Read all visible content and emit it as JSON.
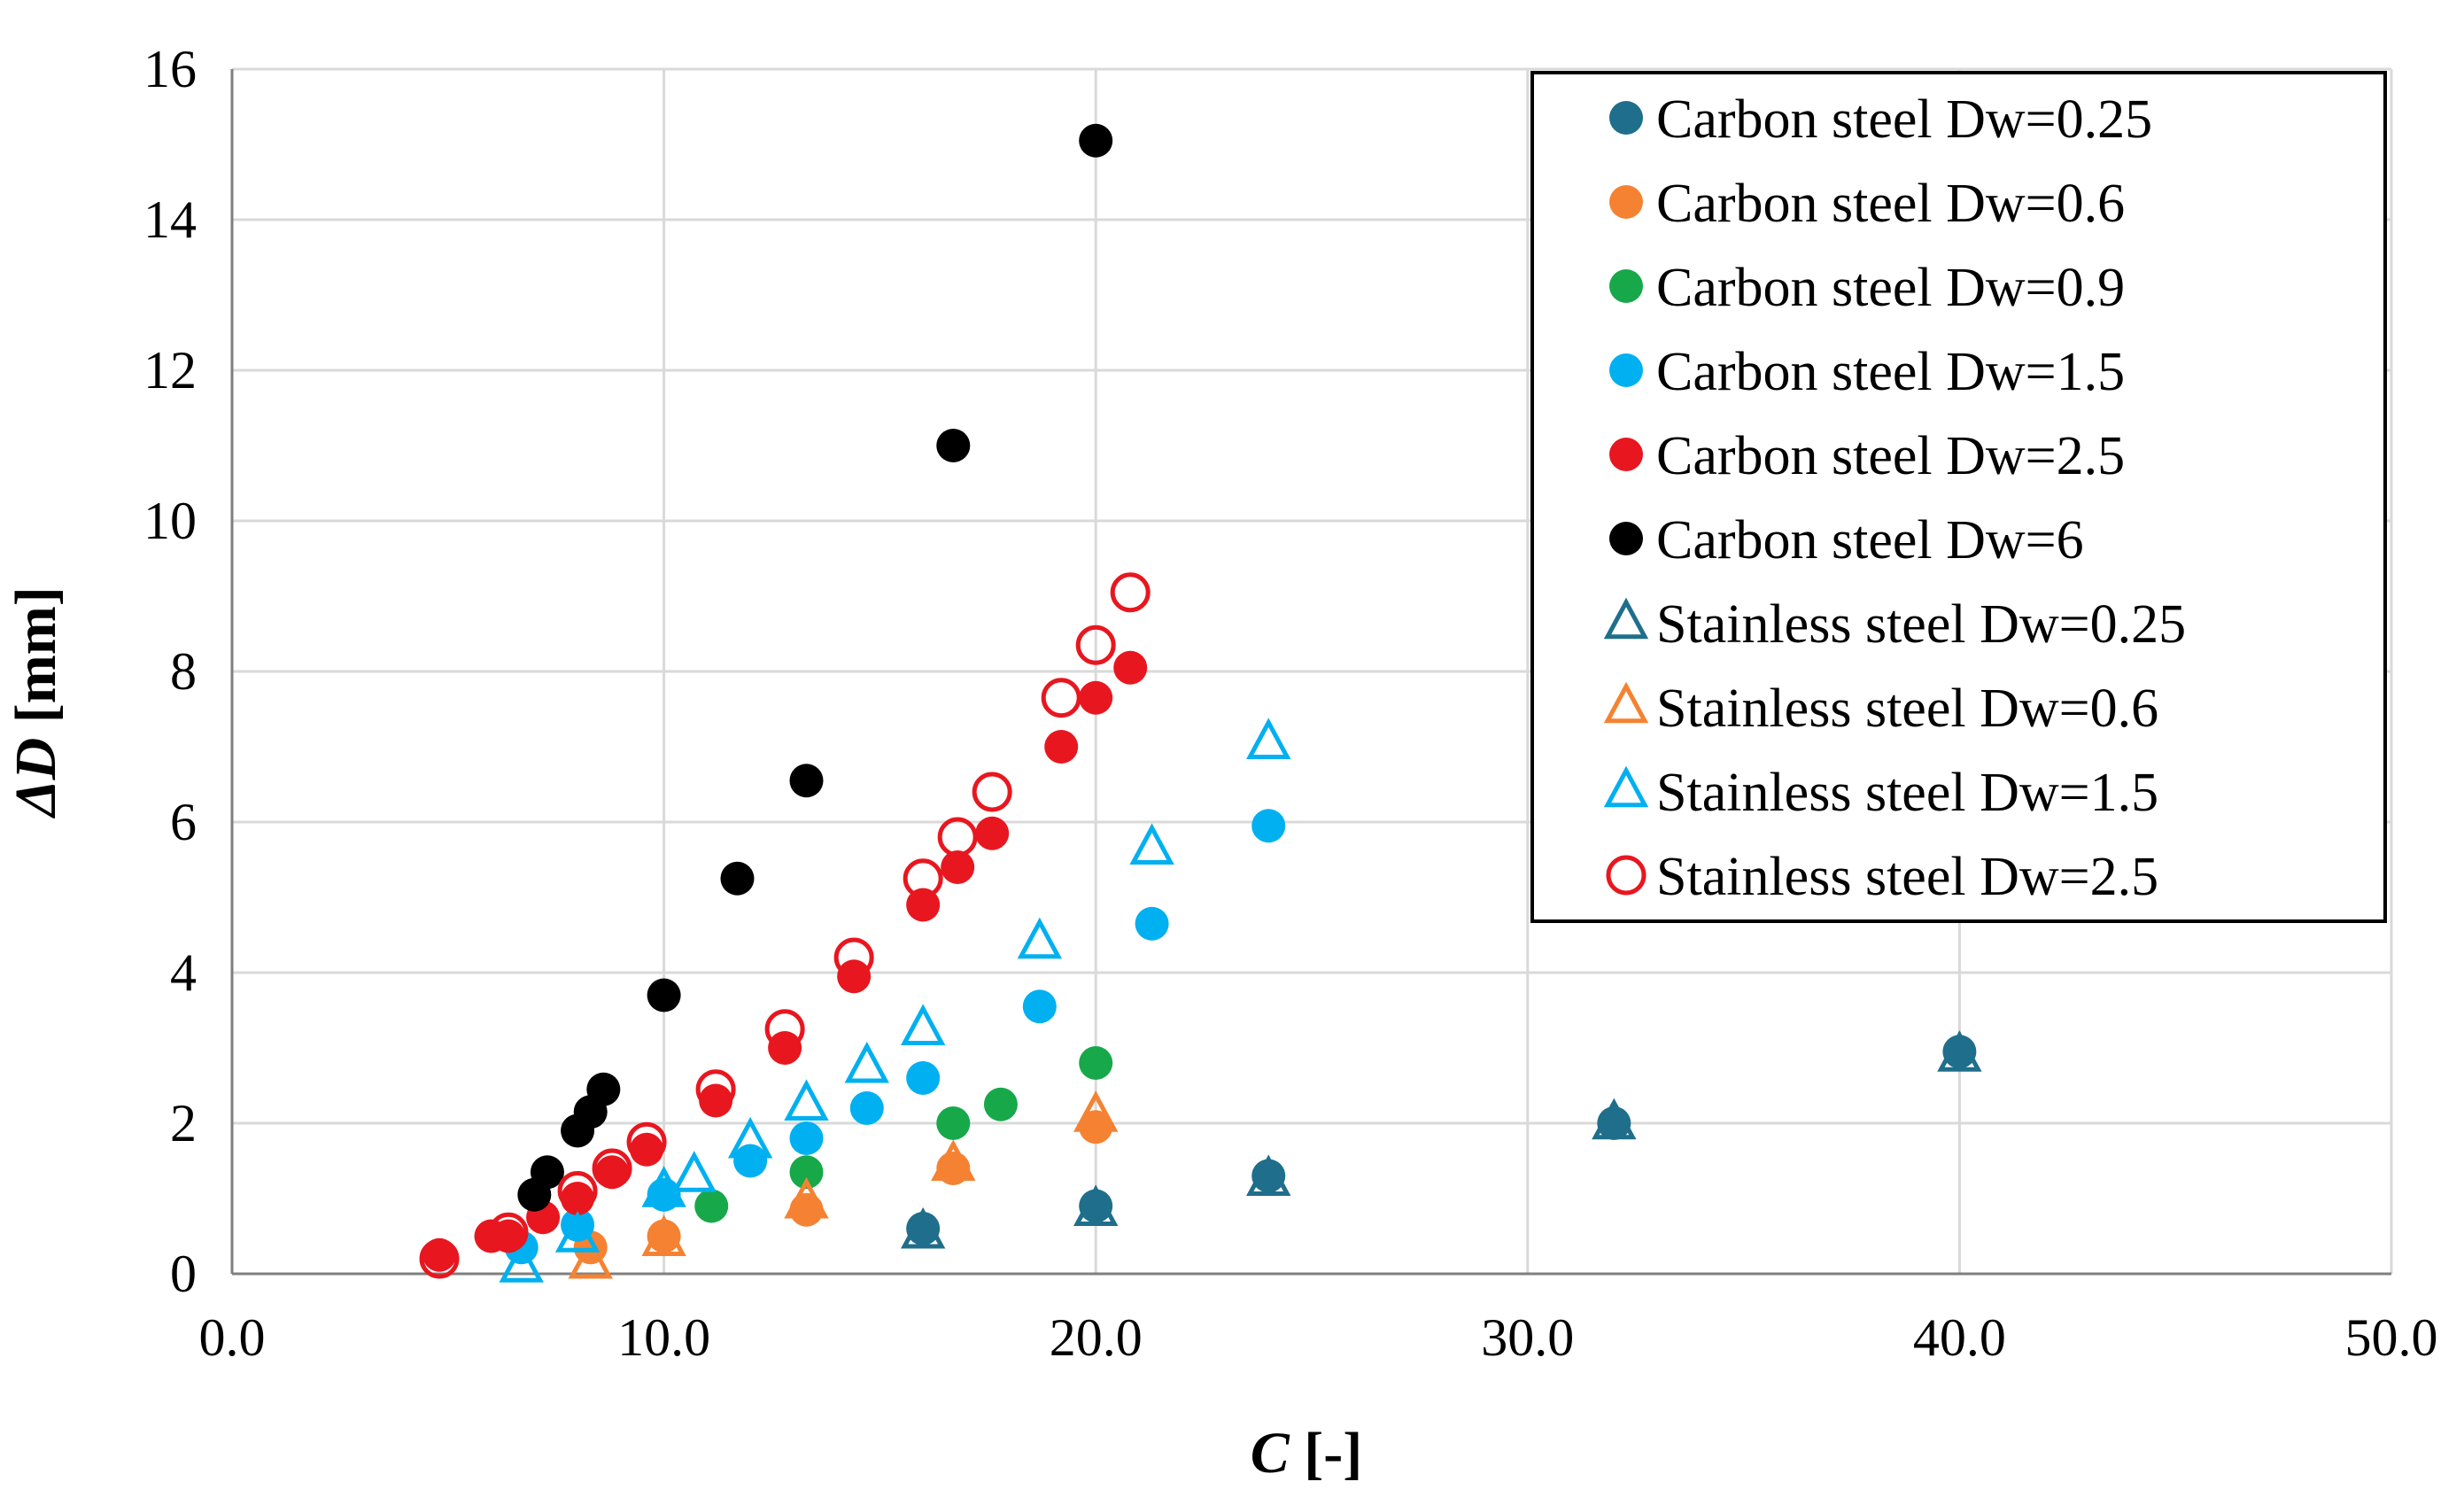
{
  "chart_data": {
    "type": "scatter",
    "title": "",
    "xlabel_main": "C",
    "xlabel_unit": " [-]",
    "ylabel_main": "ΔD",
    "ylabel_unit": " [mm]",
    "xlim": [
      0,
      50
    ],
    "ylim": [
      0,
      16
    ],
    "xticks": [
      0,
      10,
      20,
      30,
      40,
      50
    ],
    "xtick_labels": [
      "0.0",
      "10.0",
      "20.0",
      "30.0",
      "40.0",
      "50.0"
    ],
    "yticks": [
      0,
      2,
      4,
      6,
      8,
      10,
      12,
      14,
      16
    ],
    "ytick_labels": [
      "0",
      "2",
      "4",
      "6",
      "8",
      "10",
      "12",
      "14",
      "16"
    ],
    "grid": true,
    "legend_position": "top-right",
    "series": [
      {
        "name": "Carbon steel Dw=0.25",
        "color": "#1F6E8C",
        "marker": "circle-filled",
        "points": [
          [
            16.0,
            0.6
          ],
          [
            20.0,
            0.9
          ],
          [
            24.0,
            1.3
          ],
          [
            32.0,
            2.0
          ],
          [
            40.0,
            2.95
          ]
        ]
      },
      {
        "name": "Carbon steel Dw=0.6",
        "color": "#F58232",
        "marker": "circle-filled",
        "points": [
          [
            8.3,
            0.35
          ],
          [
            10.0,
            0.5
          ],
          [
            13.3,
            0.85
          ],
          [
            16.7,
            1.4
          ],
          [
            20.0,
            1.95
          ]
        ]
      },
      {
        "name": "Carbon steel Dw=0.9",
        "color": "#17A84A",
        "marker": "circle-filled",
        "points": [
          [
            11.1,
            0.9
          ],
          [
            13.3,
            1.35
          ],
          [
            16.7,
            2.0
          ],
          [
            17.8,
            2.25
          ],
          [
            20.0,
            2.8
          ]
        ]
      },
      {
        "name": "Carbon steel Dw=1.5",
        "color": "#00B0F0",
        "marker": "circle-filled",
        "points": [
          [
            6.7,
            0.35
          ],
          [
            8.0,
            0.65
          ],
          [
            10.0,
            1.05
          ],
          [
            12.0,
            1.5
          ],
          [
            13.3,
            1.8
          ],
          [
            14.7,
            2.2
          ],
          [
            16.0,
            2.6
          ],
          [
            18.7,
            3.55
          ],
          [
            21.3,
            4.65
          ],
          [
            24.0,
            5.95
          ]
        ]
      },
      {
        "name": "Carbon steel Dw=2.5",
        "color": "#E8171F",
        "marker": "circle-filled",
        "points": [
          [
            4.8,
            0.25
          ],
          [
            6.0,
            0.5
          ],
          [
            6.4,
            0.5
          ],
          [
            7.2,
            0.75
          ],
          [
            8.0,
            1.0
          ],
          [
            8.8,
            1.35
          ],
          [
            9.6,
            1.65
          ],
          [
            11.2,
            2.3
          ],
          [
            12.8,
            3.0
          ],
          [
            14.4,
            3.95
          ],
          [
            16.0,
            4.9
          ],
          [
            16.8,
            5.4
          ],
          [
            17.6,
            5.85
          ],
          [
            19.2,
            7.0
          ],
          [
            20.0,
            7.65
          ],
          [
            20.8,
            8.05
          ]
        ]
      },
      {
        "name": "Carbon steel Dw=6",
        "color": "#000000",
        "marker": "circle-filled",
        "points": [
          [
            7.0,
            1.05
          ],
          [
            7.3,
            1.35
          ],
          [
            8.0,
            1.9
          ],
          [
            8.3,
            2.15
          ],
          [
            8.6,
            2.45
          ],
          [
            10.0,
            3.7
          ],
          [
            11.7,
            5.25
          ],
          [
            13.3,
            6.55
          ],
          [
            16.7,
            11.0
          ],
          [
            20.0,
            15.05
          ]
        ]
      },
      {
        "name": "Stainless steel Dw=0.25",
        "color": "#1F6E8C",
        "marker": "triangle-open",
        "points": [
          [
            16.0,
            0.55
          ],
          [
            20.0,
            0.85
          ],
          [
            24.0,
            1.25
          ],
          [
            32.0,
            2.0
          ],
          [
            40.0,
            2.9
          ]
        ]
      },
      {
        "name": "Stainless steel Dw=0.6",
        "color": "#F58232",
        "marker": "triangle-open",
        "points": [
          [
            8.3,
            0.15
          ],
          [
            10.0,
            0.45
          ],
          [
            13.3,
            0.95
          ],
          [
            16.7,
            1.45
          ],
          [
            20.0,
            2.1
          ]
        ]
      },
      {
        "name": "Stainless steel Dw=1.5",
        "color": "#00B0F0",
        "marker": "triangle-open",
        "points": [
          [
            6.7,
            0.1
          ],
          [
            8.0,
            0.5
          ],
          [
            10.0,
            1.1
          ],
          [
            10.7,
            1.3
          ],
          [
            12.0,
            1.75
          ],
          [
            13.3,
            2.25
          ],
          [
            14.7,
            2.75
          ],
          [
            16.0,
            3.25
          ],
          [
            18.7,
            4.4
          ],
          [
            21.3,
            5.65
          ],
          [
            24.0,
            7.05
          ]
        ]
      },
      {
        "name": "Stainless steel Dw=2.5",
        "color": "#E8171F",
        "marker": "circle-open",
        "points": [
          [
            4.8,
            0.2
          ],
          [
            6.4,
            0.55
          ],
          [
            8.0,
            1.1
          ],
          [
            8.8,
            1.4
          ],
          [
            9.6,
            1.75
          ],
          [
            11.2,
            2.45
          ],
          [
            12.8,
            3.25
          ],
          [
            14.4,
            4.2
          ],
          [
            16.0,
            5.25
          ],
          [
            16.8,
            5.8
          ],
          [
            17.6,
            6.4
          ],
          [
            19.2,
            7.65
          ],
          [
            20.0,
            8.35
          ],
          [
            20.8,
            9.05
          ]
        ]
      }
    ]
  }
}
